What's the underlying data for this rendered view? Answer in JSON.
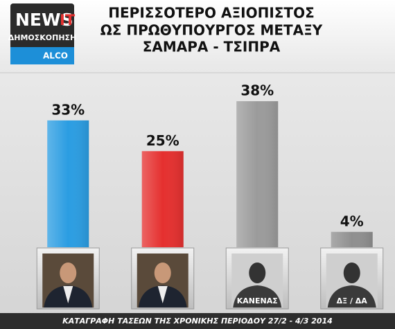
{
  "logo": {
    "brand": "NEWS",
    "brand_suffix": "IT",
    "subtitle": "ΔΗΜΟΣΚΟΠΗΣΗ",
    "pollster": "ALCO"
  },
  "chart_data": {
    "type": "bar",
    "title_lines": [
      "ΠΕΡΙΣΣΟΤΕΡΟ ΑΞΙΟΠΙΣΤΟΣ",
      "ΩΣ ΠΡΩΘΥΠΟΥΡΓΟΣ ΜΕΤΑΞΥ",
      "ΣΑΜΑΡΑ - ΤΣΙΠΡΑ"
    ],
    "categories": [
      null,
      null,
      "ΚΑΝΕΝΑΣ",
      "ΔΞ / ΔΑ"
    ],
    "values": [
      33,
      25,
      38,
      4
    ],
    "value_labels": [
      "33%",
      "25%",
      "38%",
      "4%"
    ],
    "colors": [
      "#2b9de2",
      "#e5302f",
      "#9b9b9b",
      "#8f8f8f"
    ],
    "footer": "ΚΑΤΑΓΡΑΦΗ ΤΑΣΕΩΝ ΤΗΣ ΧΡΟΝΙΚΗΣ ΠΕΡΙΟΔΟΥ 27/2 - 4/3 2014"
  }
}
